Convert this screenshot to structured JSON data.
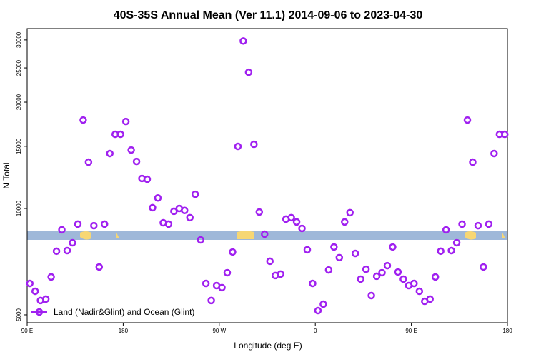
{
  "chart_data": {
    "type": "scatter",
    "title": "40S-35S Annual Mean (Ver 11.1)   2014-09-06 to 2023-04-30",
    "x_label": "Longitude (deg E)",
    "y_label": "N Total",
    "log_y": true,
    "legend_position": "bottom-left",
    "xlim": [
      90,
      540
    ],
    "ylim": [
      4750,
      32300
    ],
    "xticks": [
      {
        "value": 90,
        "label": "90 E"
      },
      180,
      {
        "value": 270,
        "label": "90 W"
      },
      {
        "value": 360,
        "label": "0"
      },
      {
        "value": 450,
        "label": "90 E"
      },
      {
        "value": 540,
        "label": "180"
      }
    ],
    "yticks": [
      5000,
      10000,
      15000,
      20000,
      25000,
      30000
    ],
    "x": [
      92.5,
      97.5,
      102.5,
      107.5,
      112.5,
      117.5,
      122.5,
      127.5,
      132.5,
      137.5,
      142.5,
      147.5,
      152.5,
      157.5,
      162.5,
      167.5,
      172.5,
      177.5,
      182.5,
      187.5,
      192.5,
      197.5,
      202.5,
      207.5,
      212.5,
      217.5,
      222.5,
      227.5,
      232.5,
      237.5,
      242.5,
      247.5,
      252.5,
      257.5,
      262.5,
      267.5,
      272.5,
      277.5,
      282.5,
      287.5,
      292.5,
      297.5,
      302.5,
      307.5,
      312.5,
      317.5,
      322.5,
      327.5,
      332.5,
      337.5,
      342.5,
      347.5,
      352.5,
      357.5,
      362.5,
      367.5,
      372.5,
      377.5,
      382.5,
      387.5,
      392.5,
      397.5,
      402.5,
      407.5,
      412.5,
      417.5,
      422.5,
      427.5,
      432.5,
      437.5,
      442.5,
      447.5,
      452.5,
      457.5,
      462.5,
      467.5,
      472.5,
      477.5,
      482.5,
      487.5,
      492.5,
      497.5,
      502.5,
      507.5,
      512.5,
      517.5,
      522.5,
      527.5,
      532.5,
      537.5
    ],
    "series": [
      {
        "name": "Land (Nadir&Glint) and Ocean (Glint)",
        "color": "#a020f0",
        "values": [
          6135,
          5830,
          5490,
          5540,
          6400,
          7570,
          8700,
          7600,
          8000,
          9030,
          17800,
          13530,
          8940,
          6830,
          9030,
          14310,
          16220,
          16220,
          17630,
          14640,
          13590,
          12160,
          12100,
          10050,
          10710,
          9110,
          9030,
          9820,
          10000,
          9870,
          9420,
          10970,
          8150,
          6135,
          5490,
          6050,
          5970,
          6580,
          7530,
          14990,
          29800,
          24300,
          15200,
          9770,
          8460,
          7090,
          6460,
          6520,
          9330,
          9420,
          9160,
          8780,
          7640,
          6135,
          5140,
          5360,
          6700,
          7780,
          7260,
          9160,
          9730,
          7460,
          6310,
          6730,
          5670,
          6430,
          6580,
          6890,
          7780,
          6610,
          6310,
          6050,
          6135,
          5830,
          5460,
          5540,
          6400,
          7570,
          8700,
          7600,
          8000,
          9030,
          17800,
          13530,
          8940,
          6830,
          9030,
          14310,
          16220,
          16220
        ]
      }
    ]
  }
}
